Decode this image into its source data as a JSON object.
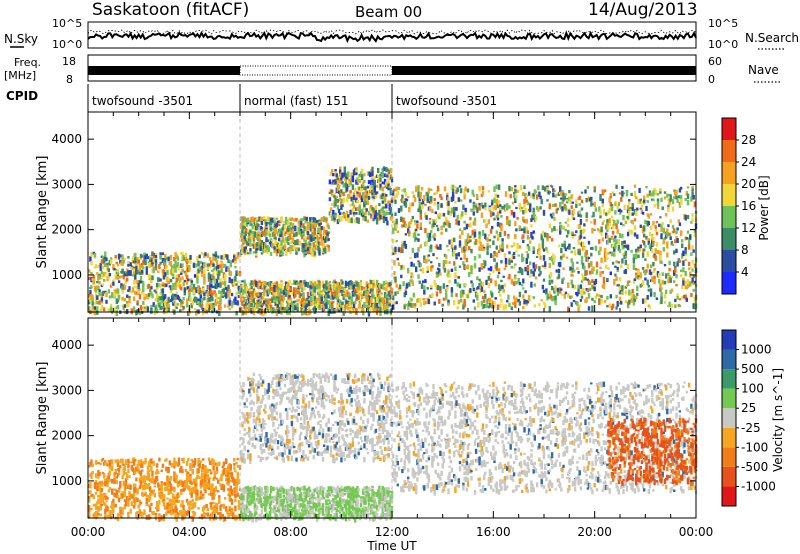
{
  "header": {
    "station": "Saskatoon (fitACF)",
    "beam": "Beam 00",
    "date": "14/Aug/2013"
  },
  "noise_panel": {
    "left_label": "N.Sky",
    "right_label": "N.Search",
    "ticks_left": [
      "10^5",
      "10^0"
    ],
    "ticks_right": [
      "10^5",
      "10^0"
    ]
  },
  "freq_panel": {
    "left_label_1": "Freq.",
    "left_label_2": "[MHz]",
    "right_label": "Nave",
    "ticks_left": [
      "18",
      "8"
    ],
    "ticks_right": [
      "60",
      "0"
    ]
  },
  "cpid": {
    "label": "CPID",
    "segments": [
      {
        "name": "twofsound -3501",
        "start_h": 0,
        "end_h": 6
      },
      {
        "name": "normal (fast) 151",
        "start_h": 6,
        "end_h": 12
      },
      {
        "name": "twofsound -3501",
        "start_h": 12,
        "end_h": 24
      }
    ]
  },
  "colors": {
    "power": [
      "#1e2bff",
      "#2b4ea3",
      "#3c8d66",
      "#6fc25a",
      "#f2d73a",
      "#f4a21f",
      "#f06a1a",
      "#e0161b"
    ],
    "velocity": [
      "#243cb8",
      "#2d6aa6",
      "#3c9a6a",
      "#74c951",
      "#c8c8c4",
      "#f5a623",
      "#f07d1a",
      "#e8521a",
      "#e0161b"
    ]
  },
  "chart_data": [
    {
      "type": "heatmap",
      "panel": "power",
      "ylabel": "Slant Range [km]",
      "xlabel": "Time UT",
      "x_ticks": [
        "00:00",
        "04:00",
        "08:00",
        "12:00",
        "16:00",
        "20:00",
        "00:00"
      ],
      "xlim_hours": [
        0,
        24
      ],
      "y_ticks": [
        1000,
        2000,
        3000,
        4000
      ],
      "ylim_km": [
        180,
        4600
      ],
      "colorbar": {
        "label": "Power [dB]",
        "ticks": [
          4,
          8,
          12,
          16,
          20,
          24,
          28
        ],
        "range": [
          0,
          32
        ]
      },
      "echo_regions": [
        {
          "t0": 0.0,
          "t1": 6.0,
          "r0": 200,
          "r1": 1520,
          "level": 0.45
        },
        {
          "t0": 6.0,
          "t1": 9.5,
          "r0": 1500,
          "r1": 2300,
          "level": 0.5
        },
        {
          "t0": 9.5,
          "t1": 12.0,
          "r0": 2200,
          "r1": 3400,
          "level": 0.3
        },
        {
          "t0": 6.0,
          "t1": 12.0,
          "r0": 200,
          "r1": 900,
          "level": 0.55
        },
        {
          "t0": 12.0,
          "t1": 24.0,
          "r0": 300,
          "r1": 3000,
          "level": 0.45
        }
      ]
    },
    {
      "type": "heatmap",
      "panel": "velocity",
      "ylabel": "Slant Range [km]",
      "xlabel": "Time UT",
      "x_ticks": [
        "00:00",
        "04:00",
        "08:00",
        "12:00",
        "16:00",
        "20:00",
        "00:00"
      ],
      "xlim_hours": [
        0,
        24
      ],
      "y_ticks": [
        1000,
        2000,
        3000,
        4000
      ],
      "ylim_km": [
        180,
        4600
      ],
      "colorbar": {
        "label": "Velocity [m s^-1]",
        "ticks": [
          1000,
          500,
          100,
          25,
          -25,
          -100,
          -500,
          -1000
        ]
      },
      "echo_regions": [
        {
          "t0": 0.0,
          "t1": 6.0,
          "r0": 200,
          "r1": 1520,
          "level": -300
        },
        {
          "t0": 6.0,
          "t1": 12.0,
          "r0": 1500,
          "r1": 3400,
          "level": 0
        },
        {
          "t0": 6.0,
          "t1": 12.0,
          "r0": 200,
          "r1": 900,
          "level": 50
        },
        {
          "t0": 12.0,
          "t1": 24.0,
          "r0": 800,
          "r1": 3200,
          "level": 0
        },
        {
          "t0": 20.5,
          "t1": 24.0,
          "r0": 1000,
          "r1": 2400,
          "level": -600
        }
      ]
    }
  ]
}
